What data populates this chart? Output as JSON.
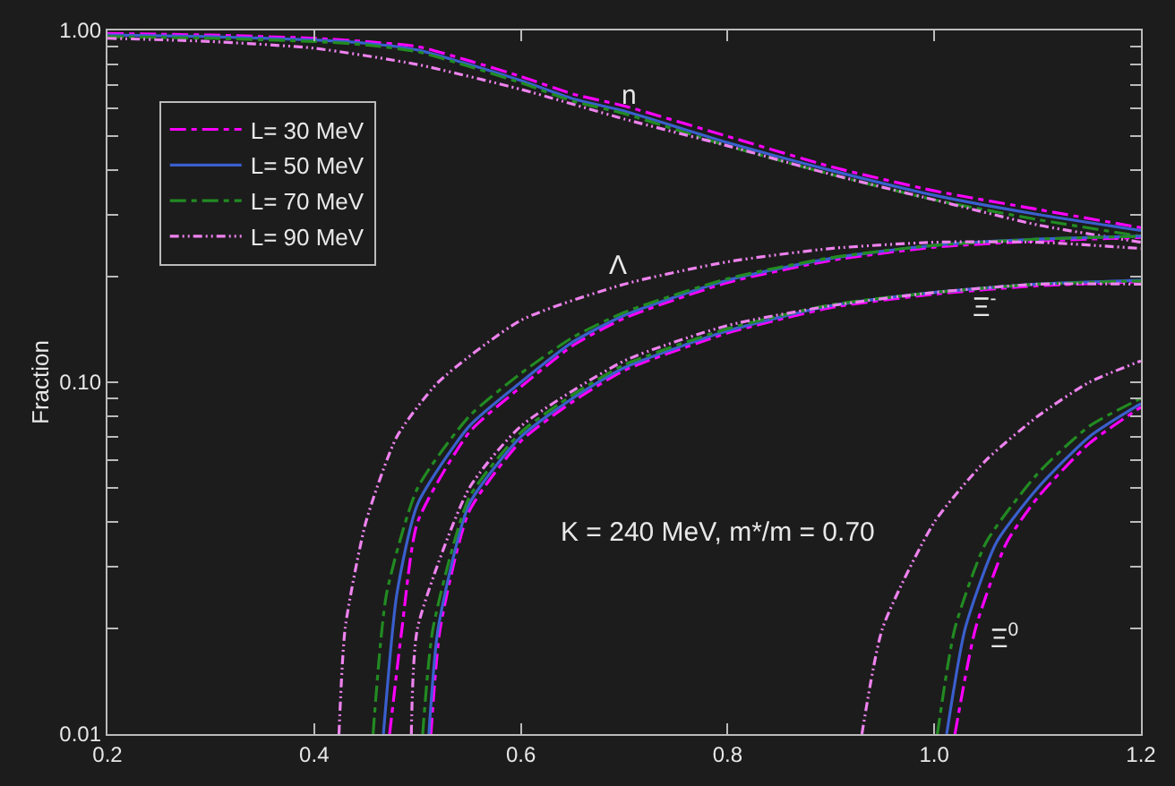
{
  "chart_data": {
    "type": "line",
    "ylabel": "Fraction",
    "log": "y",
    "xlim": [
      0.2,
      1.2
    ],
    "xticks": [
      0.2,
      0.4,
      0.6,
      0.8,
      {
        "value": 1.0,
        "label": "1.0"
      },
      1.2
    ],
    "ylim": [
      0.01,
      1.0
    ],
    "yticks": [
      0.01,
      {
        "value": 0.02,
        "label": null
      },
      {
        "value": 0.03,
        "label": null
      },
      {
        "value": 0.04,
        "label": null
      },
      {
        "value": 0.05,
        "label": null
      },
      {
        "value": 0.06,
        "label": null
      },
      {
        "value": 0.07,
        "label": null
      },
      {
        "value": 0.08,
        "label": null
      },
      {
        "value": 0.09,
        "label": null
      },
      {
        "value": 0.1,
        "label": "0.10"
      },
      {
        "value": 0.2,
        "label": null
      },
      {
        "value": 0.3,
        "label": null
      },
      {
        "value": 0.4,
        "label": null
      },
      {
        "value": 0.5,
        "label": null
      },
      {
        "value": 0.6,
        "label": null
      },
      {
        "value": 0.7,
        "label": null
      },
      {
        "value": 0.8,
        "label": null
      },
      {
        "value": 0.9,
        "label": null
      },
      {
        "value": 1.0,
        "label": "1.00"
      }
    ],
    "grid": false,
    "legend": "top left",
    "marker": "none",
    "series": [
      {
        "name": "L= 30 MeV",
        "color": "#ff00ff",
        "line_style": "dashed",
        "x": [
          0.2,
          0.3,
          0.4,
          0.45,
          0.5,
          0.55,
          0.6,
          0.65,
          0.7,
          0.8,
          0.9,
          1.0,
          1.1,
          1.2
        ],
        "values": [
          0.98,
          0.97,
          0.95,
          0.93,
          0.9,
          0.82,
          0.74,
          0.66,
          0.61,
          0.5,
          0.41,
          0.35,
          0.31,
          0.275
        ]
      },
      {
        "name": "L= 50 MeV",
        "color": "#3a5fcd",
        "line_style": "solid",
        "x": [
          0.2,
          0.3,
          0.4,
          0.45,
          0.5,
          0.55,
          0.6,
          0.65,
          0.7,
          0.8,
          0.9,
          1.0,
          1.1,
          1.2
        ],
        "values": [
          0.97,
          0.96,
          0.94,
          0.92,
          0.88,
          0.8,
          0.72,
          0.64,
          0.59,
          0.48,
          0.4,
          0.34,
          0.3,
          0.27
        ]
      },
      {
        "name": "L= 70 MeV",
        "color": "#228b22",
        "line_style": "dashed",
        "x": [
          0.2,
          0.3,
          0.4,
          0.45,
          0.5,
          0.55,
          0.6,
          0.65,
          0.7,
          0.8,
          0.9,
          1.0,
          1.1,
          1.2
        ],
        "values": [
          0.96,
          0.95,
          0.93,
          0.91,
          0.87,
          0.79,
          0.71,
          0.63,
          0.58,
          0.47,
          0.39,
          0.33,
          0.29,
          0.26
        ]
      },
      {
        "name": "L= 90 MeV",
        "color": "#ee82ee",
        "line_style": "dotted",
        "x": [
          0.2,
          0.3,
          0.4,
          0.5,
          0.6,
          0.7,
          0.8,
          0.9,
          1.0,
          1.1,
          1.2
        ],
        "values": [
          0.95,
          0.93,
          0.89,
          0.8,
          0.68,
          0.56,
          0.47,
          0.39,
          0.33,
          0.28,
          0.25
        ]
      },
      {
        "color": "#ff00ff",
        "line_style": "dashed",
        "x": [
          0.473,
          0.485,
          0.5,
          0.55,
          0.6,
          0.65,
          0.7,
          0.8,
          0.9,
          1.0,
          1.1,
          1.2
        ],
        "values": [
          0.01,
          0.02,
          0.04,
          0.072,
          0.097,
          0.127,
          0.152,
          0.192,
          0.222,
          0.242,
          0.252,
          0.258
        ]
      },
      {
        "color": "#3a5fcd",
        "line_style": "solid",
        "x": [
          0.467,
          0.48,
          0.5,
          0.55,
          0.6,
          0.65,
          0.7,
          0.8,
          0.9,
          1.0,
          1.1,
          1.2
        ],
        "values": [
          0.01,
          0.025,
          0.045,
          0.075,
          0.1,
          0.13,
          0.155,
          0.195,
          0.225,
          0.245,
          0.255,
          0.26
        ]
      },
      {
        "color": "#228b22",
        "line_style": "dashed",
        "x": [
          0.457,
          0.47,
          0.5,
          0.55,
          0.6,
          0.65,
          0.7,
          0.8,
          0.9,
          1.0,
          1.1,
          1.2
        ],
        "values": [
          0.01,
          0.025,
          0.05,
          0.08,
          0.106,
          0.134,
          0.158,
          0.197,
          0.226,
          0.245,
          0.255,
          0.26
        ]
      },
      {
        "color": "#ee82ee",
        "line_style": "dotted",
        "x": [
          0.424,
          0.43,
          0.45,
          0.48,
          0.52,
          0.6,
          0.7,
          0.8,
          0.9,
          1.0,
          1.1,
          1.2
        ],
        "values": [
          0.01,
          0.02,
          0.04,
          0.07,
          0.1,
          0.15,
          0.19,
          0.22,
          0.24,
          0.25,
          0.25,
          0.24
        ]
      },
      {
        "color": "#ff00ff",
        "line_style": "dashed",
        "x": [
          0.513,
          0.522,
          0.55,
          0.6,
          0.65,
          0.7,
          0.8,
          0.9,
          1.0,
          1.1,
          1.2
        ],
        "values": [
          0.01,
          0.02,
          0.043,
          0.068,
          0.088,
          0.108,
          0.138,
          0.163,
          0.178,
          0.188,
          0.193
        ]
      },
      {
        "color": "#3a5fcd",
        "line_style": "solid",
        "x": [
          0.511,
          0.52,
          0.55,
          0.6,
          0.65,
          0.7,
          0.8,
          0.9,
          1.0,
          1.1,
          1.2
        ],
        "values": [
          0.01,
          0.02,
          0.045,
          0.07,
          0.09,
          0.11,
          0.14,
          0.165,
          0.18,
          0.19,
          0.195
        ]
      },
      {
        "color": "#228b22",
        "line_style": "dashed",
        "x": [
          0.505,
          0.515,
          0.55,
          0.6,
          0.65,
          0.7,
          0.8,
          0.9,
          1.0,
          1.1,
          1.2
        ],
        "values": [
          0.01,
          0.02,
          0.047,
          0.072,
          0.092,
          0.112,
          0.142,
          0.166,
          0.18,
          0.19,
          0.194
        ]
      },
      {
        "color": "#ee82ee",
        "line_style": "dotted",
        "x": [
          0.494,
          0.5,
          0.55,
          0.6,
          0.7,
          0.8,
          0.9,
          1.0,
          1.1,
          1.2
        ],
        "values": [
          0.01,
          0.02,
          0.05,
          0.075,
          0.115,
          0.145,
          0.165,
          0.18,
          0.19,
          0.19
        ]
      },
      {
        "color": "#ff00ff",
        "line_style": "dashed",
        "x": [
          1.02,
          1.04,
          1.07,
          1.1,
          1.15,
          1.2
        ],
        "values": [
          0.01,
          0.02,
          0.035,
          0.047,
          0.067,
          0.085
        ]
      },
      {
        "color": "#3a5fcd",
        "line_style": "solid",
        "x": [
          1.012,
          1.03,
          1.06,
          1.1,
          1.15,
          1.2
        ],
        "values": [
          0.01,
          0.02,
          0.035,
          0.05,
          0.07,
          0.087
        ]
      },
      {
        "color": "#228b22",
        "line_style": "dashed",
        "x": [
          1.003,
          1.02,
          1.05,
          1.1,
          1.15,
          1.2
        ],
        "values": [
          0.01,
          0.02,
          0.035,
          0.055,
          0.075,
          0.09
        ]
      },
      {
        "color": "#ee82ee",
        "line_style": "dotted",
        "x": [
          0.93,
          0.95,
          1.0,
          1.05,
          1.1,
          1.15,
          1.2
        ],
        "values": [
          0.01,
          0.02,
          0.04,
          0.06,
          0.08,
          0.1,
          0.115
        ]
      }
    ],
    "annotations": [
      "n",
      "Λ",
      "Ξ$^{-}$",
      "Ξ$^{0}$",
      "K = 240 MeV, m*/m = 0.70"
    ]
  }
}
